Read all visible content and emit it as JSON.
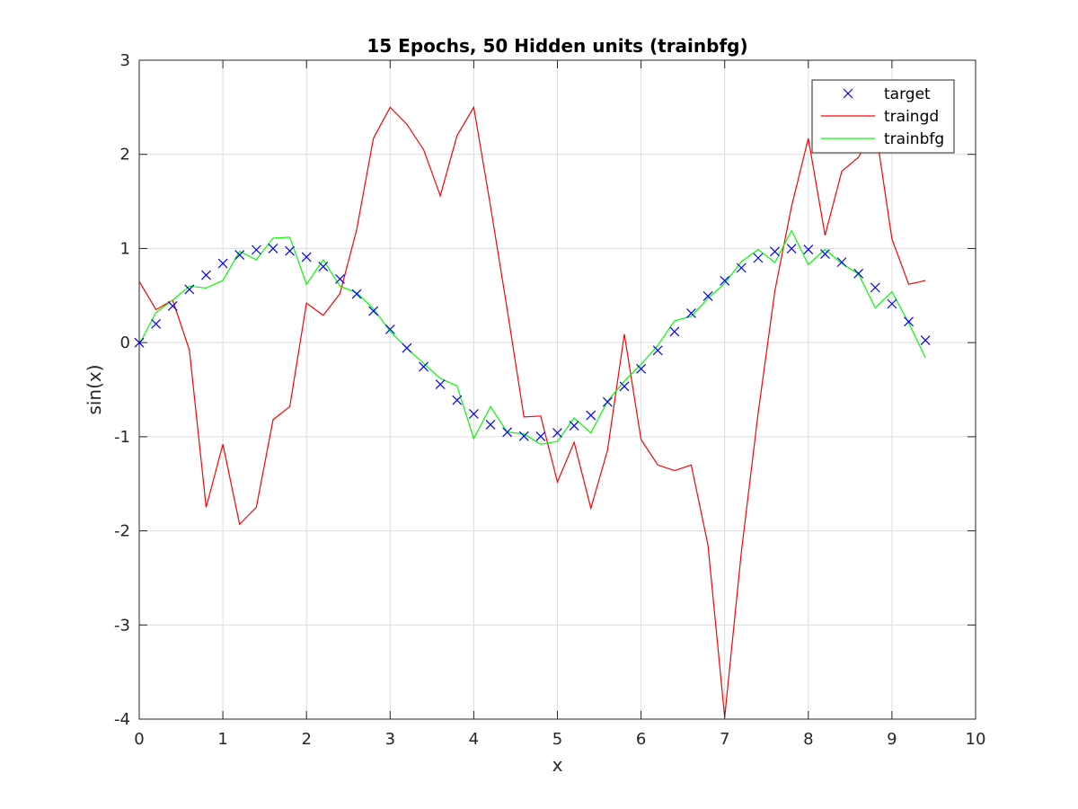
{
  "chart_data": {
    "type": "line",
    "title": "15 Epochs, 50 Hidden units (trainbfg)",
    "xlabel": "x",
    "ylabel": "sin(x)",
    "xlim": [
      0,
      10
    ],
    "ylim": [
      -4,
      3
    ],
    "xticks": [
      0,
      1,
      2,
      3,
      4,
      5,
      6,
      7,
      8,
      9,
      10
    ],
    "yticks": [
      -4,
      -3,
      -2,
      -1,
      0,
      1,
      2,
      3
    ],
    "grid": true,
    "legend_position": "top-right",
    "x": [
      0,
      0.2,
      0.4,
      0.6,
      0.8,
      1.0,
      1.2,
      1.4,
      1.6,
      1.8,
      2.0,
      2.2,
      2.4,
      2.6,
      2.8,
      3.0,
      3.2,
      3.4,
      3.6,
      3.8,
      4.0,
      4.2,
      4.4,
      4.6,
      4.8,
      5.0,
      5.2,
      5.4,
      5.6,
      5.8,
      6.0,
      6.2,
      6.4,
      6.6,
      6.8,
      7.0,
      7.2,
      7.4,
      7.6,
      7.8,
      8.0,
      8.2,
      8.4,
      8.6,
      8.8,
      9.0,
      9.2,
      9.4
    ],
    "series": [
      {
        "name": "target",
        "style": "markers",
        "marker": "x",
        "color": "#0000ff",
        "values": [
          0,
          0.199,
          0.389,
          0.565,
          0.717,
          0.841,
          0.932,
          0.985,
          1.0,
          0.974,
          0.909,
          0.808,
          0.675,
          0.516,
          0.335,
          0.141,
          -0.058,
          -0.256,
          -0.443,
          -0.612,
          -0.757,
          -0.872,
          -0.952,
          -0.994,
          -0.996,
          -0.959,
          -0.883,
          -0.773,
          -0.631,
          -0.465,
          -0.279,
          -0.083,
          0.117,
          0.312,
          0.494,
          0.657,
          0.794,
          0.899,
          0.968,
          0.999,
          0.989,
          0.941,
          0.855,
          0.734,
          0.585,
          0.412,
          0.223,
          0.025
        ]
      },
      {
        "name": "traingd",
        "style": "line",
        "color": "#ff0000",
        "values": [
          0.65,
          0.35,
          0.45,
          -0.08,
          -1.75,
          -1.08,
          -1.93,
          -1.75,
          -0.82,
          -0.68,
          0.42,
          0.29,
          0.52,
          1.2,
          2.17,
          2.5,
          2.32,
          2.05,
          1.56,
          2.2,
          2.5,
          1.45,
          0.35,
          -0.79,
          -0.78,
          -1.48,
          -1.06,
          -1.76,
          -1.14,
          0.09,
          -1.03,
          -1.3,
          -1.36,
          -1.3,
          -2.15,
          -3.98,
          -2.22,
          -0.75,
          0.55,
          1.45,
          2.17,
          1.14,
          1.82,
          1.97,
          2.3,
          1.1,
          0.62,
          0.66
        ]
      },
      {
        "name": "trainbfg",
        "style": "line",
        "color": "#00ff00",
        "values": [
          -0.02,
          0.32,
          0.45,
          0.6,
          0.58,
          0.66,
          0.97,
          0.88,
          1.11,
          1.12,
          0.62,
          0.88,
          0.6,
          0.53,
          0.36,
          0.12,
          -0.06,
          -0.22,
          -0.38,
          -0.46,
          -1.02,
          -0.68,
          -0.95,
          -0.97,
          -1.08,
          -1.05,
          -0.8,
          -0.96,
          -0.62,
          -0.41,
          -0.23,
          -0.03,
          0.23,
          0.28,
          0.47,
          0.63,
          0.86,
          0.99,
          0.85,
          1.19,
          0.83,
          0.99,
          0.84,
          0.73,
          0.37,
          0.54,
          0.21,
          -0.16
        ]
      }
    ]
  }
}
